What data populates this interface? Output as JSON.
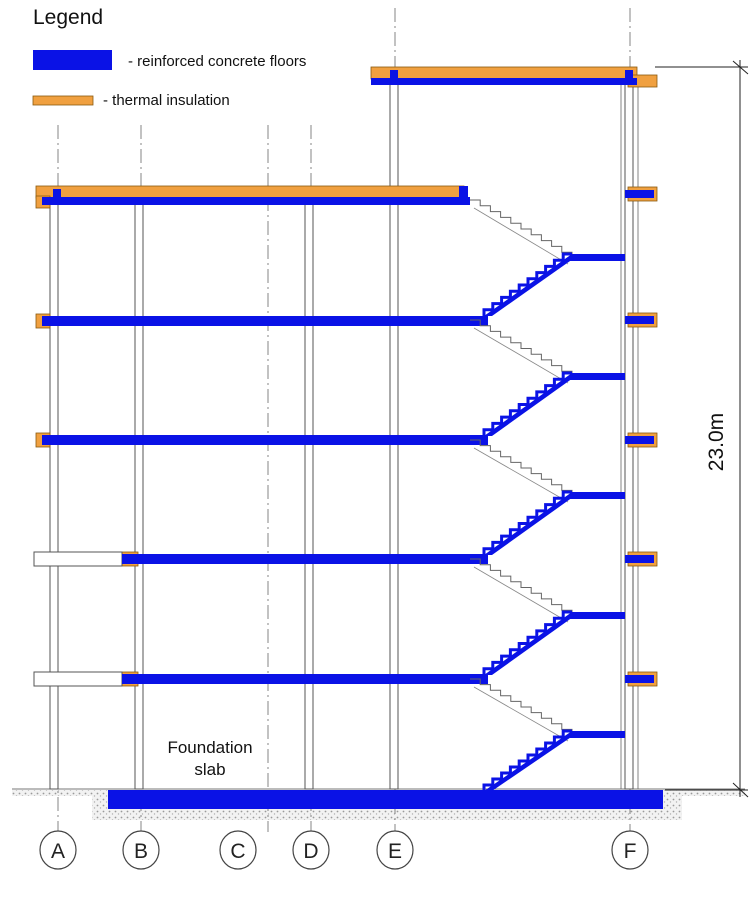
{
  "legend": {
    "title": "Legend",
    "items": [
      {
        "label": "- reinforced concrete floors",
        "color": "#0a12e6",
        "symbol": "concrete-swatch-icon"
      },
      {
        "label": "- thermal insulation",
        "color": "#f0a040",
        "symbol": "insulation-swatch-icon"
      }
    ]
  },
  "annotations": {
    "foundation_line1": "Foundation",
    "foundation_line2": "slab",
    "height": "23.0m"
  },
  "axes": [
    "A",
    "B",
    "C",
    "D",
    "E",
    "F"
  ],
  "colors": {
    "concrete": "#0a12e6",
    "insulation": "#f0a040",
    "line": "#555555",
    "ground": "#e8e8e8"
  }
}
